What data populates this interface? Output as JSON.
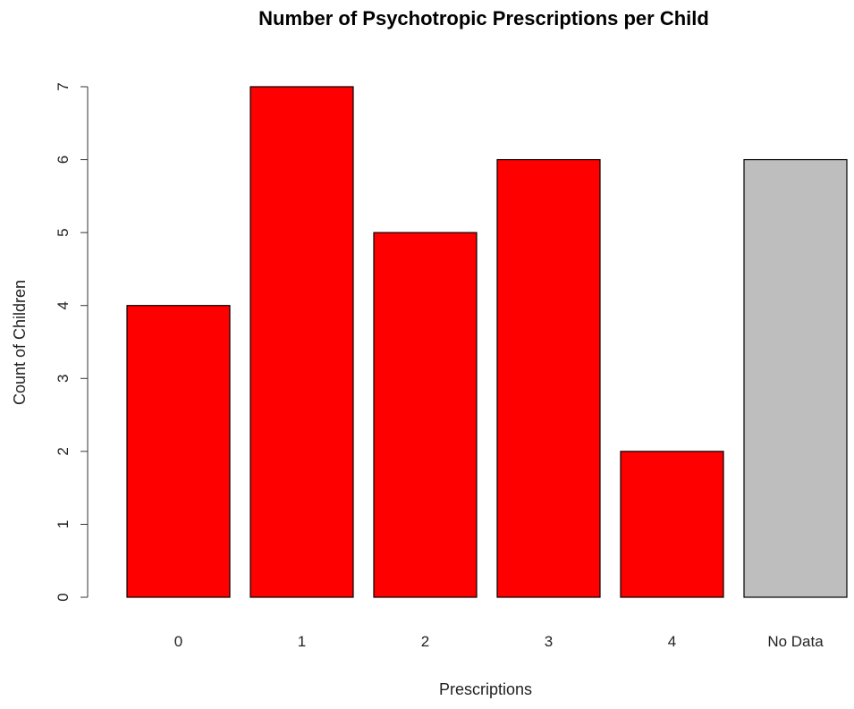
{
  "chart_data": {
    "type": "bar",
    "title": "Number of Psychotropic Prescriptions per Child",
    "xlabel": "Prescriptions",
    "ylabel": "Count of Children",
    "categories": [
      "0",
      "1",
      "2",
      "3",
      "4",
      "No Data"
    ],
    "values": [
      4,
      7,
      5,
      6,
      2,
      6
    ],
    "colors": [
      "#ff0000",
      "#ff0000",
      "#ff0000",
      "#ff0000",
      "#ff0000",
      "#bebebe"
    ],
    "ylim": [
      0,
      7
    ],
    "yticks": [
      "0",
      "1",
      "2",
      "3",
      "4",
      "5",
      "6",
      "7"
    ],
    "grid": false,
    "legend": "none"
  }
}
